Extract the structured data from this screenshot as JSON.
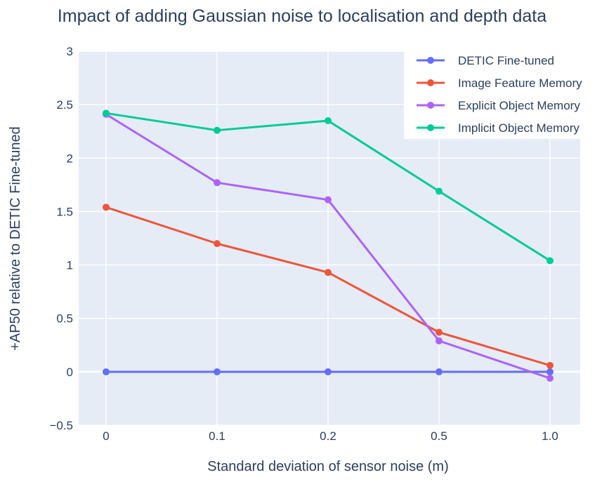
{
  "chart_data": {
    "type": "line",
    "title": "Impact of adding Gaussian noise to localisation and depth data",
    "xlabel": "Standard deviation of sensor noise (m)",
    "ylabel": "+AP50 relative to DETIC Fine-tuned",
    "categories": [
      "0",
      "0.1",
      "0.2",
      "0.5",
      "1.0"
    ],
    "ylim": [
      -0.5,
      3
    ],
    "yticks": [
      -0.5,
      0,
      0.5,
      1,
      1.5,
      2,
      2.5,
      3
    ],
    "ytick_labels": [
      "−0.5",
      "0",
      "0.5",
      "1",
      "1.5",
      "2",
      "2.5",
      "3"
    ],
    "grid": true,
    "legend_position": "top-right",
    "background_color": "#e5ecf6",
    "series": [
      {
        "name": "DETIC Fine-tuned",
        "color": "#636efa",
        "values": [
          0,
          0,
          0,
          0,
          0
        ]
      },
      {
        "name": "Image Feature Memory",
        "color": "#ef553b",
        "values": [
          1.54,
          1.2,
          0.93,
          0.37,
          0.06
        ]
      },
      {
        "name": "Explicit Object Memory",
        "color": "#ab63fa",
        "values": [
          2.41,
          1.77,
          1.61,
          0.29,
          -0.06
        ]
      },
      {
        "name": "Implicit Object Memory",
        "color": "#00cc96",
        "values": [
          2.42,
          2.26,
          2.35,
          1.69,
          1.04
        ]
      }
    ]
  }
}
